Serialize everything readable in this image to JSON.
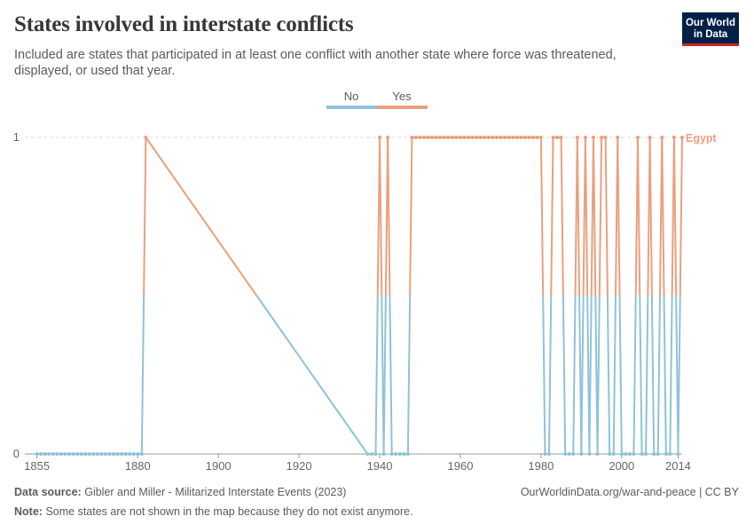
{
  "header": {
    "title": "States involved in interstate conflicts",
    "subtitle": "Included are states that participated in at least one conflict with another state where force was threatened, displayed, or used that year.",
    "logo_line1": "Our World",
    "logo_line2": "in Data"
  },
  "footer": {
    "source_label": "Data source:",
    "source_text": "Gibler and Miller - Militarized Interstate Events (2023)",
    "credit": "OurWorldinData.org/war-and-peace | CC BY",
    "note_label": "Note:",
    "note_text": "Some states are not shown in the map because they do not exist anymore."
  },
  "colors": {
    "no": "#8fc3d8",
    "yes": "#e9a07e",
    "grid": "#dddddd",
    "axis": "#666666"
  },
  "chart_data": {
    "type": "line",
    "categories": [
      "No",
      "Yes"
    ],
    "legend_position": "top-center",
    "series": [
      {
        "name": "Egypt",
        "points": [
          [
            1855,
            0
          ],
          [
            1856,
            0
          ],
          [
            1857,
            0
          ],
          [
            1858,
            0
          ],
          [
            1859,
            0
          ],
          [
            1860,
            0
          ],
          [
            1861,
            0
          ],
          [
            1862,
            0
          ],
          [
            1863,
            0
          ],
          [
            1864,
            0
          ],
          [
            1865,
            0
          ],
          [
            1866,
            0
          ],
          [
            1867,
            0
          ],
          [
            1868,
            0
          ],
          [
            1869,
            0
          ],
          [
            1870,
            0
          ],
          [
            1871,
            0
          ],
          [
            1872,
            0
          ],
          [
            1873,
            0
          ],
          [
            1874,
            0
          ],
          [
            1875,
            0
          ],
          [
            1876,
            0
          ],
          [
            1877,
            0
          ],
          [
            1878,
            0
          ],
          [
            1879,
            0
          ],
          [
            1880,
            0
          ],
          [
            1881,
            0
          ],
          [
            1882,
            1
          ],
          [
            1937,
            0
          ],
          [
            1938,
            0
          ],
          [
            1939,
            0
          ],
          [
            1940,
            1
          ],
          [
            1941,
            0
          ],
          [
            1942,
            1
          ],
          [
            1943,
            0
          ],
          [
            1944,
            0
          ],
          [
            1945,
            0
          ],
          [
            1946,
            0
          ],
          [
            1947,
            0
          ],
          [
            1948,
            1
          ],
          [
            1949,
            1
          ],
          [
            1950,
            1
          ],
          [
            1951,
            1
          ],
          [
            1952,
            1
          ],
          [
            1953,
            1
          ],
          [
            1954,
            1
          ],
          [
            1955,
            1
          ],
          [
            1956,
            1
          ],
          [
            1957,
            1
          ],
          [
            1958,
            1
          ],
          [
            1959,
            1
          ],
          [
            1960,
            1
          ],
          [
            1961,
            1
          ],
          [
            1962,
            1
          ],
          [
            1963,
            1
          ],
          [
            1964,
            1
          ],
          [
            1965,
            1
          ],
          [
            1966,
            1
          ],
          [
            1967,
            1
          ],
          [
            1968,
            1
          ],
          [
            1969,
            1
          ],
          [
            1970,
            1
          ],
          [
            1971,
            1
          ],
          [
            1972,
            1
          ],
          [
            1973,
            1
          ],
          [
            1974,
            1
          ],
          [
            1975,
            1
          ],
          [
            1976,
            1
          ],
          [
            1977,
            1
          ],
          [
            1978,
            1
          ],
          [
            1979,
            1
          ],
          [
            1980,
            1
          ],
          [
            1981,
            0
          ],
          [
            1982,
            0
          ],
          [
            1983,
            1
          ],
          [
            1984,
            1
          ],
          [
            1985,
            1
          ],
          [
            1986,
            0
          ],
          [
            1987,
            0
          ],
          [
            1988,
            0
          ],
          [
            1989,
            1
          ],
          [
            1990,
            0
          ],
          [
            1991,
            1
          ],
          [
            1992,
            0
          ],
          [
            1993,
            1
          ],
          [
            1994,
            0
          ],
          [
            1995,
            1
          ],
          [
            1996,
            1
          ],
          [
            1997,
            0
          ],
          [
            1998,
            0
          ],
          [
            1999,
            1
          ],
          [
            2000,
            0
          ],
          [
            2001,
            0
          ],
          [
            2002,
            0
          ],
          [
            2003,
            0
          ],
          [
            2004,
            1
          ],
          [
            2005,
            0
          ],
          [
            2006,
            0
          ],
          [
            2007,
            1
          ],
          [
            2008,
            0
          ],
          [
            2009,
            0
          ],
          [
            2010,
            1
          ],
          [
            2011,
            0
          ],
          [
            2012,
            0
          ],
          [
            2013,
            1
          ],
          [
            2014,
            0
          ],
          [
            2015,
            1
          ]
        ]
      }
    ],
    "xlim": [
      1852,
      2015
    ],
    "ylim": [
      0,
      1
    ],
    "x_ticks": [
      1855,
      1880,
      1900,
      1920,
      1940,
      1960,
      1980,
      2000,
      2014
    ],
    "y_ticks": [
      0,
      1
    ],
    "end_label": "Egypt",
    "grid": true
  }
}
